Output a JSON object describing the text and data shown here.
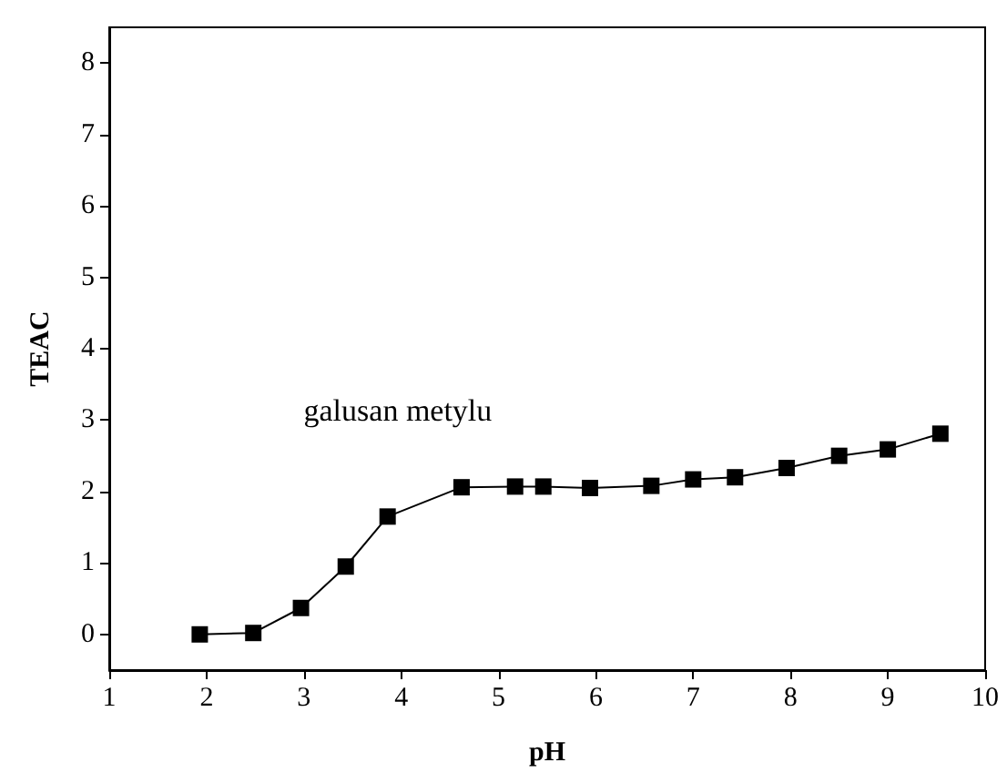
{
  "chart_data": {
    "type": "line",
    "xlabel": "pH",
    "ylabel": "TEAC",
    "x": [
      1.93,
      2.48,
      2.97,
      3.43,
      3.86,
      4.62,
      5.17,
      5.46,
      5.94,
      6.57,
      7.0,
      7.43,
      7.96,
      8.5,
      9.0,
      9.54
    ],
    "series": [
      {
        "name": "galusan metylu",
        "color": "#000000",
        "values": [
          0,
          0.02,
          0.37,
          0.95,
          1.65,
          2.06,
          2.07,
          2.07,
          2.05,
          2.08,
          2.17,
          2.2,
          2.33,
          2.5,
          2.59,
          2.81
        ]
      }
    ],
    "xlim": [
      1,
      10
    ],
    "xticks": [
      1,
      2,
      3,
      4,
      5,
      6,
      7,
      8,
      9,
      10
    ],
    "ylim": [
      -0.5,
      8.5
    ],
    "yticks": [
      0,
      1,
      2,
      3,
      4,
      5,
      6,
      7,
      8
    ],
    "marker": "square",
    "line_style": "solid",
    "grid": false,
    "legend": false
  }
}
